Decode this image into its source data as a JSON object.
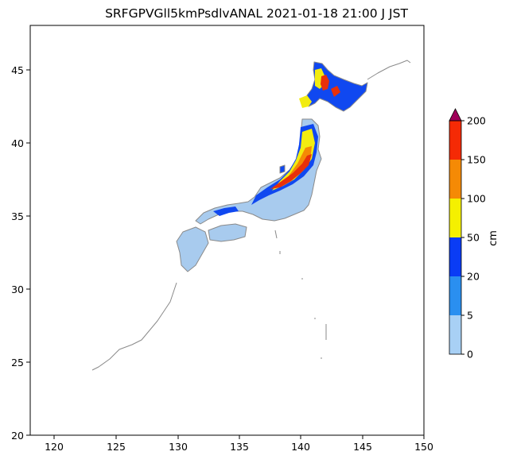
{
  "title": "SRFGPVGll5kmPsdlvANAL 2021-01-18 21:00 J JST",
  "map": {
    "x_ticks": [
      "120",
      "125",
      "130",
      "135",
      "140",
      "145",
      "150"
    ],
    "y_ticks": [
      "20",
      "25",
      "30",
      "35",
      "40",
      "45"
    ],
    "xlim": [
      118,
      150
    ],
    "ylim": [
      20,
      48
    ]
  },
  "colorbar": {
    "label": "cm",
    "ticks": [
      "0",
      "5",
      "20",
      "50",
      "100",
      "150",
      "200"
    ],
    "colors": [
      "#a8d0f5",
      "#2a8ff0",
      "#0a3cf5",
      "#f5f000",
      "#f58a05",
      "#f52a05"
    ],
    "extend_color": "#a0005a"
  },
  "colors": {
    "coast": "#8a8a8a",
    "land_base": "#a8cbee"
  }
}
